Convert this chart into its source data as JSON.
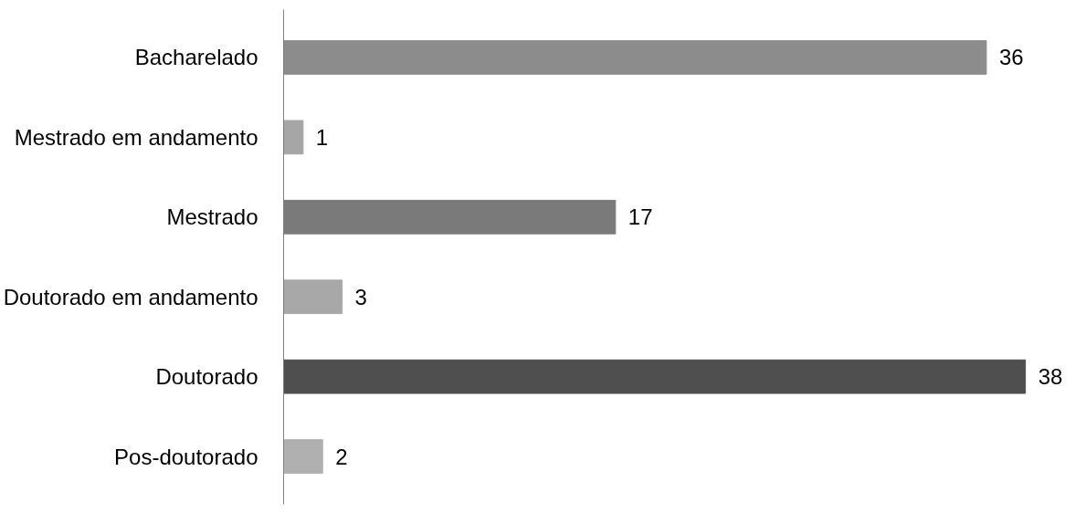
{
  "chart_data": {
    "type": "bar",
    "orientation": "horizontal",
    "data_labels": true,
    "grid": false,
    "categories": [
      "Bacharelado",
      "Mestrado em andamento",
      "Mestrado",
      "Doutorado em andamento",
      "Doutorado",
      "Pos-doutorado"
    ],
    "values": [
      36,
      1,
      17,
      3,
      38,
      2
    ],
    "colors": [
      "#8c8c8c",
      "#a6a6a6",
      "#7a7a7a",
      "#a8a8a8",
      "#4f4f4f",
      "#b0b0b0"
    ]
  }
}
